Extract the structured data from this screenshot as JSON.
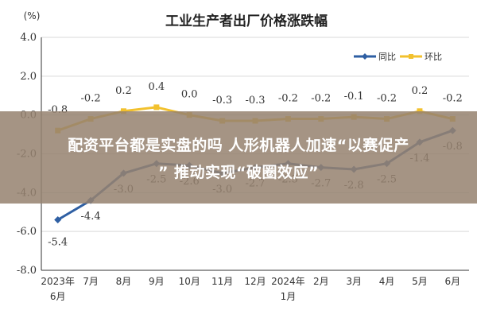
{
  "chart_data": {
    "type": "line",
    "title": "工业生产者出厂价格涨跌幅",
    "unit_label": "(%)",
    "categories": [
      "2023年\n6月",
      "7月",
      "8月",
      "9月",
      "10月",
      "11月",
      "12月",
      "2024年\n1月",
      "2月",
      "3月",
      "4月",
      "5月",
      "6月"
    ],
    "ylim": [
      -8,
      4
    ],
    "yticks": [
      "4.0",
      "2.0",
      "0.0",
      "-2.0",
      "-4.0",
      "-6.0",
      "-8.0"
    ],
    "ytick_values": [
      4,
      2,
      0,
      -2,
      -4,
      -6,
      -8
    ],
    "grid": true,
    "legend_position": "top-right",
    "series": [
      {
        "name": "同比",
        "color": "#2e5fa3",
        "values": [
          -5.4,
          -4.4,
          -3.0,
          -2.5,
          -2.6,
          -3.0,
          -2.7,
          -2.5,
          -2.7,
          -2.8,
          -2.5,
          -1.4,
          -0.8
        ],
        "labels": [
          "-5.4",
          "-4.4",
          "-3.0",
          "-2.5",
          "-2.6",
          "-3.0",
          "-2.7",
          "-2.5",
          "-2.7",
          "-2.8",
          "-2.5",
          "-1.4",
          "-0.8"
        ]
      },
      {
        "name": "环比",
        "color": "#f2c12e",
        "values": [
          -0.8,
          -0.2,
          0.2,
          0.4,
          0.0,
          -0.3,
          -0.3,
          -0.2,
          -0.2,
          -0.1,
          -0.2,
          0.2,
          -0.2
        ],
        "labels": [
          "-0.8",
          "-0.2",
          "0.2",
          "0.4",
          "0.0",
          "-0.3",
          "-0.3",
          "-0.2",
          "-0.2",
          "-0.1",
          "-0.2",
          "0.2",
          "-0.2"
        ]
      }
    ]
  },
  "overlay": {
    "line1": "配资平台都是实盘的吗 人形机器人加速“以赛促产",
    "line2": "” 推动实现“破圈效应”"
  }
}
